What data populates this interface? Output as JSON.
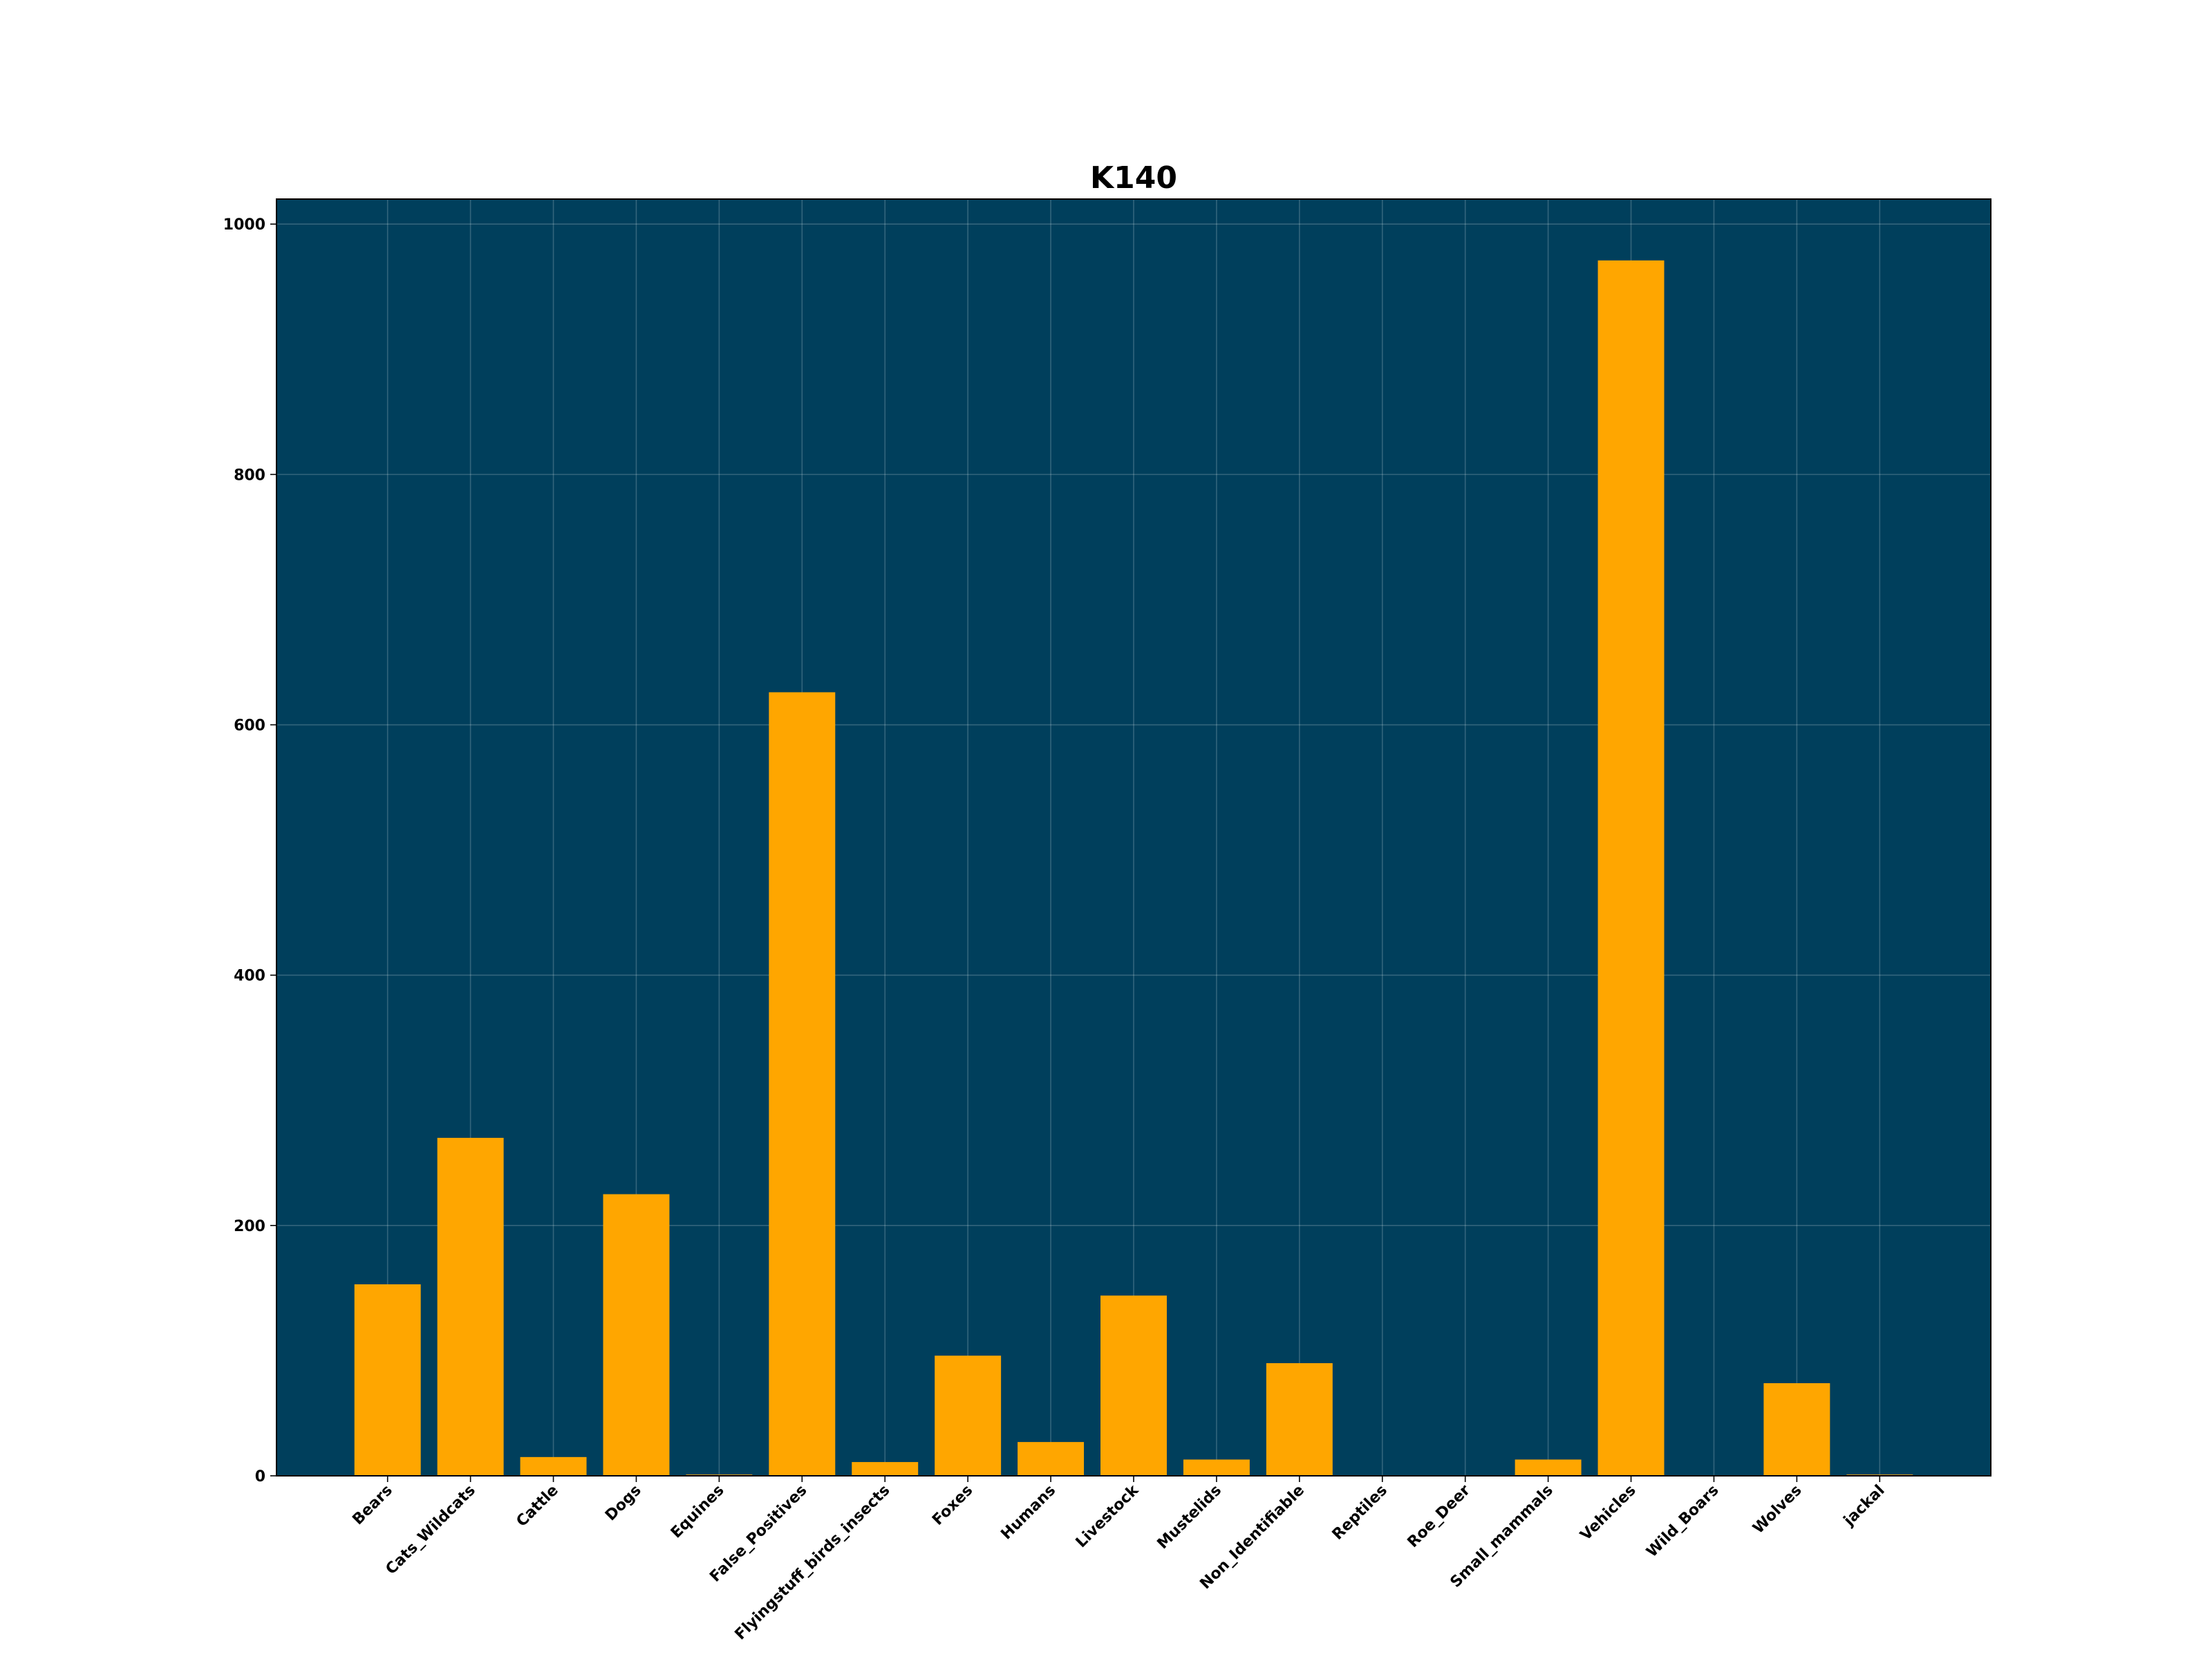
{
  "chart_data": {
    "type": "bar",
    "title": "K140",
    "categories": [
      "Bears",
      "Cats_Wildcats",
      "Cattle",
      "Dogs",
      "Equines",
      "False_Positives",
      "Flyingstuff_birds_insects",
      "Foxes",
      "Humans",
      "Livestock",
      "Mustelids",
      "Non_Identifiable",
      "Reptiles",
      "Roe_Deer",
      "Small_mammals",
      "Vehicles",
      "Wild_Boars",
      "Wolves",
      "jackal"
    ],
    "values": [
      153,
      270,
      15,
      225,
      1,
      626,
      11,
      96,
      27,
      144,
      13,
      90,
      0,
      0,
      13,
      971,
      0,
      74,
      1
    ],
    "color": "#ffa600",
    "background": "#003f5c",
    "ylim": [
      0,
      1020
    ],
    "yticks": [
      0,
      200,
      400,
      600,
      800,
      1000
    ],
    "grid": true
  }
}
